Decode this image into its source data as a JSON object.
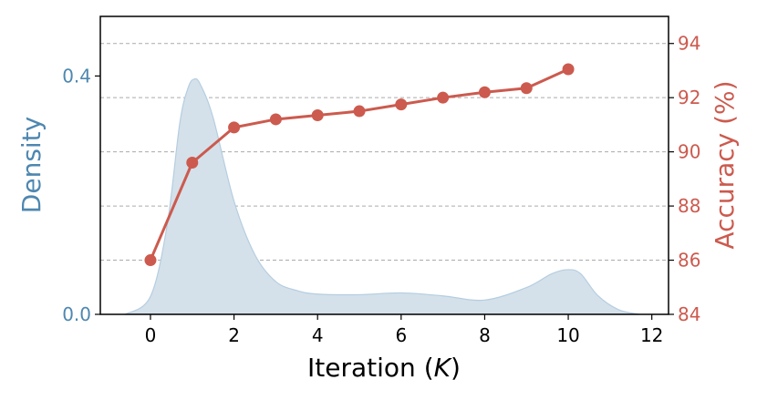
{
  "chart_data": {
    "type": "line",
    "title": "",
    "xlabel": "Iteration",
    "xlabel_var": "K",
    "ylabel_left": "Density",
    "ylabel_right": "Accuracy (%)",
    "xlim": [
      -1.2,
      12.4
    ],
    "ylim_left": [
      0.0,
      0.5
    ],
    "ylim_right": [
      84,
      95
    ],
    "x_ticks": [
      0,
      2,
      4,
      6,
      8,
      10,
      12
    ],
    "y_left_ticks": [
      {
        "value": 0.0,
        "label": "0.0"
      },
      {
        "value": 0.4,
        "label": "0.4"
      }
    ],
    "y_right_ticks": [
      84,
      86,
      88,
      90,
      92,
      94
    ],
    "grid": "horizontal dashed",
    "colors": {
      "accuracy": "#cc5a4e",
      "density_fill": "#d4e1ea",
      "density_edge": "#b5cde0",
      "density_axis": "#4e87b0",
      "grid": "#aaaaaa"
    },
    "series": [
      {
        "axis": "right",
        "style": "line-marker",
        "x": [
          0,
          1,
          2,
          3,
          4,
          5,
          6,
          7,
          8,
          9,
          10
        ],
        "values": [
          86.0,
          89.6,
          90.9,
          91.2,
          91.35,
          91.5,
          91.75,
          92.0,
          92.2,
          92.35,
          93.05
        ]
      },
      {
        "axis": "left",
        "style": "filled-density",
        "x": [
          -0.6,
          0.0,
          0.4,
          0.7,
          0.9,
          1.05,
          1.2,
          1.5,
          2.0,
          2.5,
          3.0,
          3.5,
          4.0,
          5.0,
          6.0,
          7.0,
          8.0,
          9.0,
          9.6,
          10.0,
          10.3,
          10.7,
          11.2,
          11.7
        ],
        "values": [
          0.0,
          0.03,
          0.15,
          0.32,
          0.38,
          0.395,
          0.385,
          0.33,
          0.19,
          0.1,
          0.055,
          0.04,
          0.034,
          0.033,
          0.036,
          0.031,
          0.024,
          0.045,
          0.068,
          0.075,
          0.068,
          0.032,
          0.008,
          0.0
        ]
      }
    ]
  }
}
